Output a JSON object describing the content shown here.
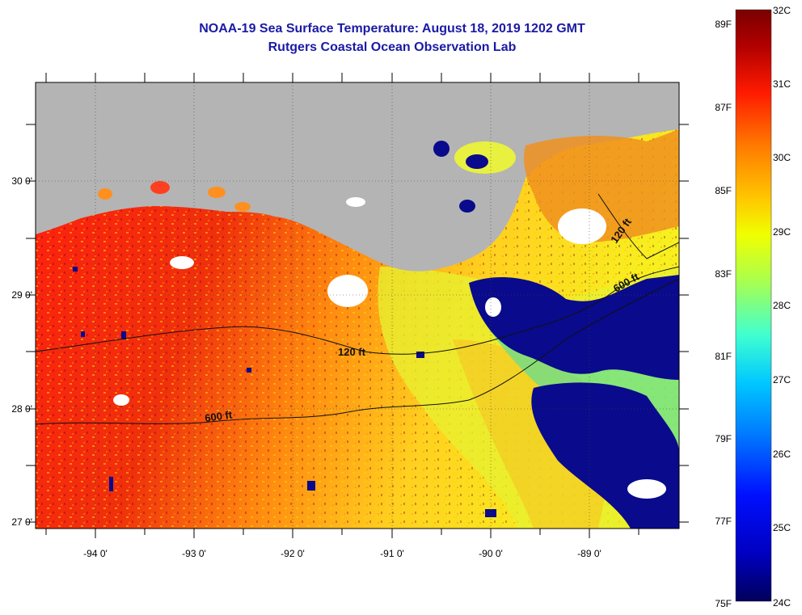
{
  "title_line1": "NOAA-19 Sea Surface Temperature:  August 18, 2019 1202 GMT",
  "title_line2": "Rutgers Coastal Ocean Observation Lab",
  "lat_labels": [
    "30 0'",
    "29 0'",
    "28 0'",
    "27 0'"
  ],
  "lon_labels": [
    "-94 0'",
    "-93 0'",
    "-92 0'",
    "-91 0'",
    "-90 0'",
    "-89 0'"
  ],
  "isobath_labels": [
    "120 ft",
    "600 ft",
    "120 ft",
    "600 ft"
  ],
  "colorbar": {
    "fahrenheit": [
      "89F",
      "87F",
      "85F",
      "83F",
      "81F",
      "79F",
      "77F",
      "75F"
    ],
    "celsius": [
      "32C",
      "31C",
      "30C",
      "29C",
      "28C",
      "27C",
      "26C",
      "25C",
      "24C"
    ]
  },
  "colors": {
    "title": "#1a1aa6",
    "land": "#b4b4b4",
    "cloud": "#ffffff",
    "warm": "#e8201a",
    "cool": "#0a0a8c"
  }
}
